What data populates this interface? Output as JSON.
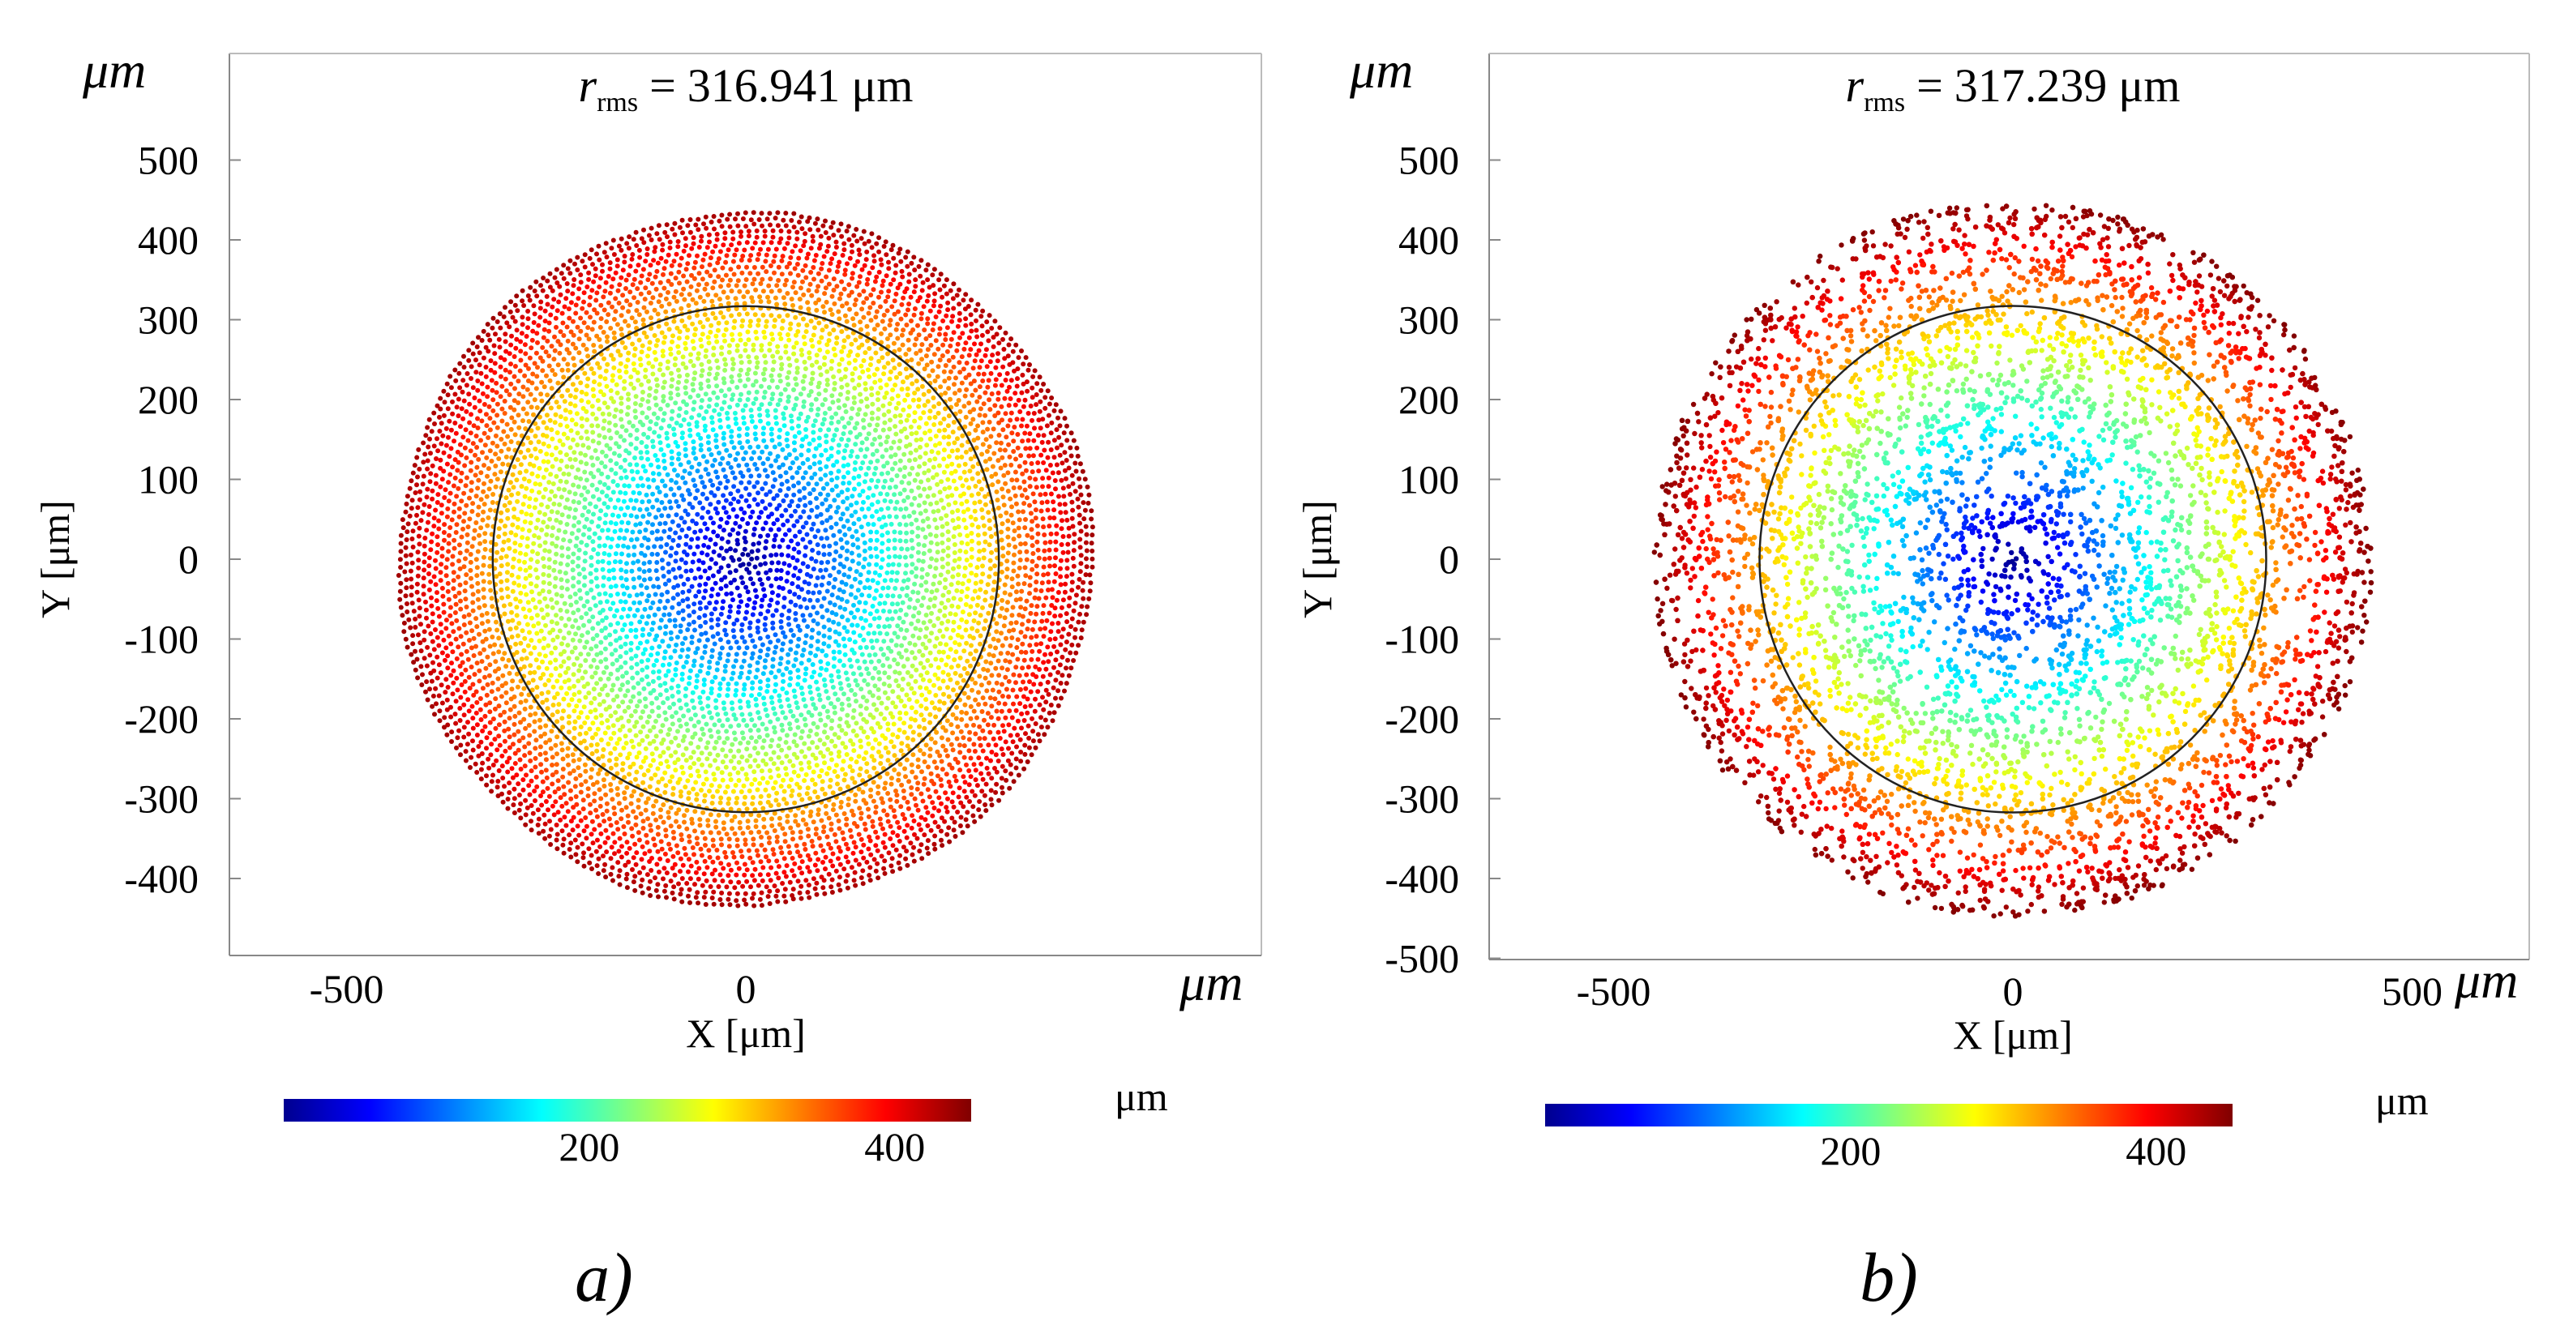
{
  "chart_data": [
    {
      "type": "scatter",
      "panel_label": "a)",
      "title_symbol": "r",
      "title_subscript": "rms",
      "title_eq": "=",
      "title_value": "316.941",
      "title_unit": "μm",
      "rms_radius": 316.941,
      "max_radius": 440,
      "pattern": "structured",
      "xlabel": "X [μm]",
      "ylabel": "Y [μm]",
      "y_axis_unit": "μm",
      "x_axis_unit": "μm",
      "xlim": [
        -640,
        640
      ],
      "ylim": [
        -480,
        600
      ],
      "xticks": [
        "-500",
        "0"
      ],
      "xtick_values": [
        -500,
        0
      ],
      "yticks": [
        "500",
        "400",
        "300",
        "200",
        "100",
        "0",
        "-100",
        "-200",
        "-300",
        "-400"
      ],
      "ytick_values": [
        500,
        400,
        300,
        200,
        100,
        0,
        -100,
        -200,
        -300,
        -400
      ],
      "colorbar": {
        "range": [
          0,
          450
        ],
        "ticks": [
          "200",
          "400"
        ],
        "tick_values": [
          200,
          400
        ],
        "unit": "μm"
      },
      "colormap": [
        "#00008f",
        "#0000ff",
        "#00ffff",
        "#ffff00",
        "#ff0000",
        "#800000"
      ]
    },
    {
      "type": "scatter",
      "panel_label": "b)",
      "title_symbol": "r",
      "title_subscript": "rms",
      "title_eq": "=",
      "title_value": "317.239",
      "title_unit": "μm",
      "rms_radius": 317.239,
      "max_radius": 450,
      "pattern": "random",
      "xlabel": "X [μm]",
      "ylabel": "Y [μm]",
      "y_axis_unit": "μm",
      "x_axis_unit": "μm",
      "xlim": [
        -650,
        650
      ],
      "ylim": [
        -505,
        630
      ],
      "xticks": [
        "-500",
        "0",
        "500"
      ],
      "xtick_values": [
        -500,
        0,
        500
      ],
      "yticks": [
        "500",
        "400",
        "300",
        "200",
        "100",
        "0",
        "-100",
        "-200",
        "-300",
        "-400",
        "-500"
      ],
      "ytick_values": [
        500,
        400,
        300,
        200,
        100,
        0,
        -100,
        -200,
        -300,
        -400,
        -500
      ],
      "colorbar": {
        "range": [
          0,
          450
        ],
        "ticks": [
          "200",
          "400"
        ],
        "tick_values": [
          200,
          400
        ],
        "unit": "μm"
      },
      "colormap": [
        "#00008f",
        "#0000ff",
        "#00ffff",
        "#ffff00",
        "#ff0000",
        "#800000"
      ]
    }
  ]
}
